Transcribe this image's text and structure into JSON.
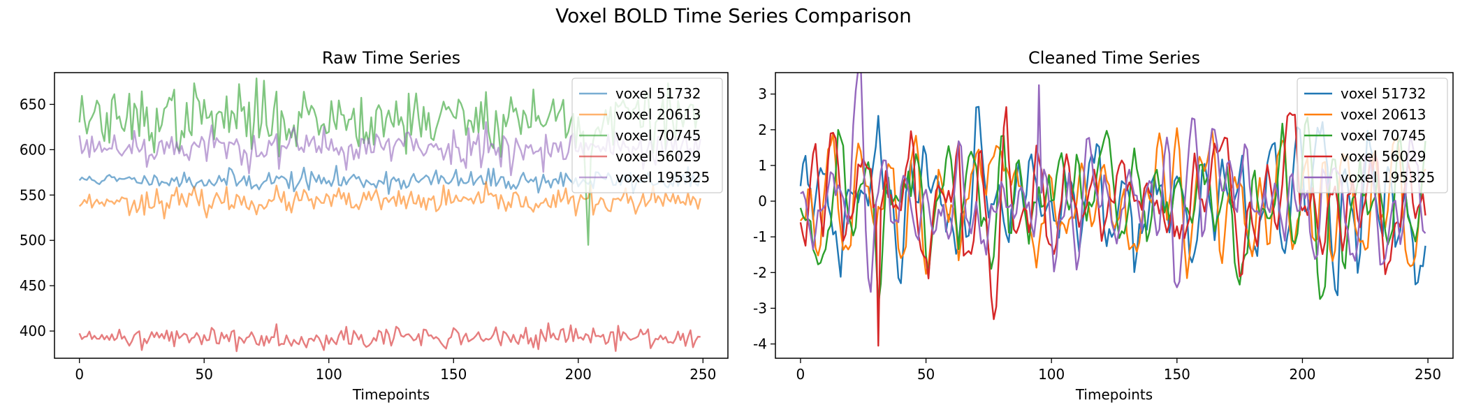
{
  "figure": {
    "title": "Voxel BOLD Time Series Comparison"
  },
  "chart_data": [
    {
      "type": "line",
      "title": "Raw Time Series",
      "xlabel": "Timepoints",
      "ylabel": "",
      "xlim": [
        -10,
        260
      ],
      "ylim": [
        370,
        685
      ],
      "xticks": [
        0,
        50,
        100,
        150,
        200,
        250
      ],
      "yticks": [
        400,
        450,
        500,
        550,
        600,
        650
      ],
      "line_opacity": 0.6,
      "legend": "upper right",
      "series": [
        {
          "name": "voxel 51732",
          "color": "#1f77b4",
          "base": 566,
          "amp": 6,
          "seed": 11,
          "values": [
            568,
            565,
            566,
            570,
            572,
            568,
            571,
            565,
            566,
            569,
            568,
            571,
            572,
            567,
            566,
            565,
            569,
            568,
            566,
            570,
            567,
            565,
            569,
            568,
            566,
            567,
            569,
            564,
            562,
            565,
            568,
            566,
            570,
            568,
            566,
            571,
            563,
            566,
            569,
            572
          ]
        },
        {
          "name": "voxel 20613",
          "color": "#ff7f0e",
          "base": 543,
          "amp": 7,
          "seed": 23,
          "values": [
            540,
            545,
            544,
            542,
            548,
            541,
            537,
            546,
            544,
            530,
            542,
            544,
            548,
            543,
            545,
            549,
            546,
            544,
            540,
            543
          ]
        },
        {
          "name": "voxel 70745",
          "color": "#2ca02c",
          "base": 635,
          "amp": 18,
          "seed": 37,
          "values": [
            645,
            650,
            642,
            628,
            634,
            620,
            638,
            672,
            645,
            628,
            610,
            620,
            600,
            640,
            664,
            630,
            618,
            612,
            630,
            605
          ]
        },
        {
          "name": "voxel 56029",
          "color": "#d62728",
          "base": 393,
          "amp": 6,
          "seed": 41,
          "values": [
            392,
            388,
            395,
            390,
            398,
            386,
            392,
            396,
            389,
            393,
            391,
            395,
            390,
            394,
            392,
            397,
            410,
            399,
            392,
            388
          ]
        },
        {
          "name": "voxel 195325",
          "color": "#9467bd",
          "base": 603,
          "amp": 11,
          "seed": 53,
          "values": [
            613,
            605,
            598,
            612,
            590,
            620,
            600,
            596,
            610,
            604,
            615,
            592,
            608,
            600,
            620,
            598,
            604,
            610,
            595,
            605
          ]
        }
      ]
    },
    {
      "type": "line",
      "title": "Cleaned Time Series",
      "xlabel": "Timepoints",
      "ylabel": "",
      "xlim": [
        -10,
        260
      ],
      "ylim": [
        -4.4,
        3.6
      ],
      "xticks": [
        0,
        50,
        100,
        150,
        200,
        250
      ],
      "yticks": [
        -4,
        -3,
        -2,
        -1,
        0,
        1,
        2,
        3
      ],
      "line_opacity": 1.0,
      "legend": "upper right",
      "series": [
        {
          "name": "voxel 51732",
          "color": "#1f77b4",
          "seed": 61
        },
        {
          "name": "voxel 20613",
          "color": "#ff7f0e",
          "seed": 67
        },
        {
          "name": "voxel 70745",
          "color": "#2ca02c",
          "seed": 71
        },
        {
          "name": "voxel 56029",
          "color": "#d62728",
          "seed": 79
        },
        {
          "name": "voxel 195325",
          "color": "#9467bd",
          "seed": 83
        }
      ]
    }
  ]
}
